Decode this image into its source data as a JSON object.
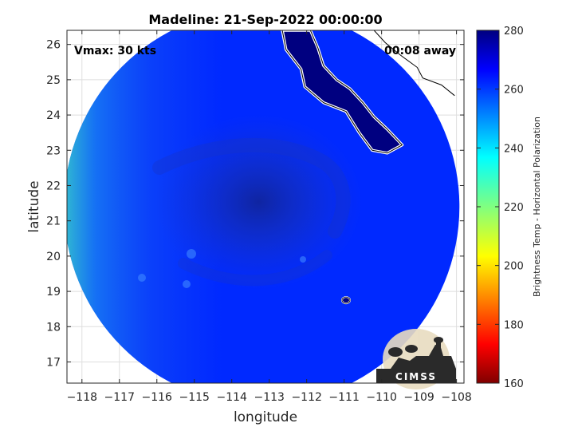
{
  "chart_data": {
    "type": "heatmap",
    "title": "Madeline: 21-Sep-2022 00:00:00",
    "xlabel": "longitude",
    "ylabel": "latitude",
    "xlim": [
      -118.4,
      -107.8
    ],
    "ylim": [
      16.4,
      26.4
    ],
    "x_ticks": [
      -118,
      -117,
      -116,
      -115,
      -114,
      -113,
      -112,
      -111,
      -110,
      -109,
      -108
    ],
    "y_ticks": [
      17,
      18,
      19,
      20,
      21,
      22,
      23,
      24,
      25,
      26
    ],
    "grid": true,
    "annotations": {
      "vmax": "Vmax: 30 kts",
      "time_away": "00:08 away"
    },
    "colorbar": {
      "label": "Brightness Temp - Horizontal Polarization",
      "range": [
        160,
        280
      ],
      "ticks": [
        160,
        180,
        200,
        220,
        240,
        260,
        280
      ],
      "colormap": "jet",
      "location": "right"
    },
    "swath": {
      "center": [
        -113.2,
        21.4
      ],
      "background_value": 262,
      "cold_center_value": 272,
      "land_value": 280
    },
    "logo": "CIMSS"
  }
}
